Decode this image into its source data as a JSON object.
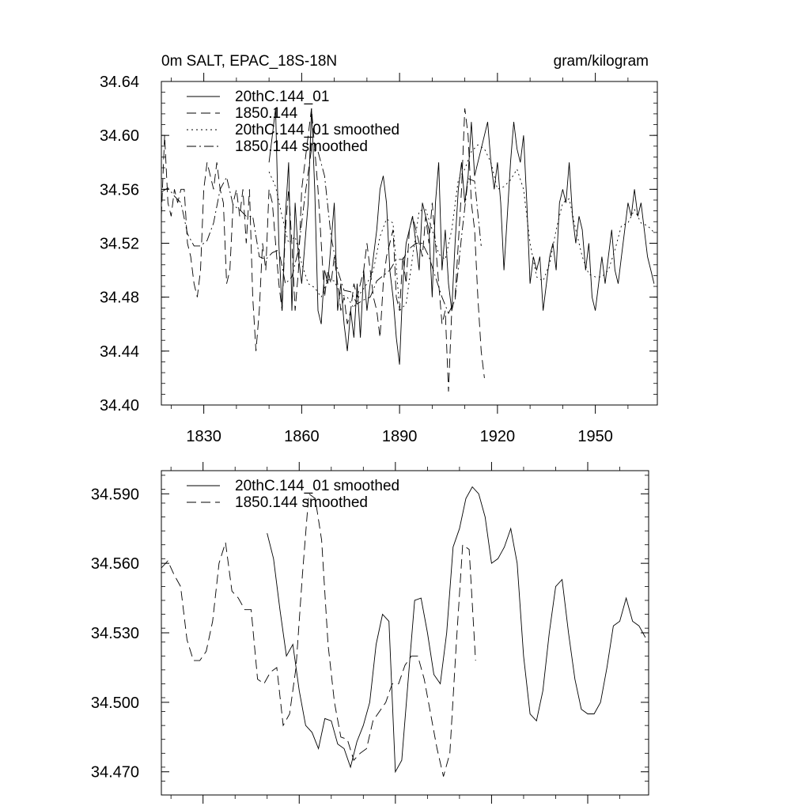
{
  "chart_data": [
    {
      "type": "line",
      "title_left": "0m SALT, EPAC_18S-18N",
      "title_right": "gram/kilogram",
      "xlim": [
        1817,
        1969
      ],
      "ylim": [
        34.4,
        34.64
      ],
      "xticks": [
        1830,
        1860,
        1890,
        1920,
        1950
      ],
      "yticks": [
        34.4,
        34.44,
        34.48,
        34.52,
        34.56,
        34.6,
        34.64
      ],
      "ytick_labels": [
        "34.40",
        "34.44",
        "34.48",
        "34.52",
        "34.56",
        "34.60",
        "34.64"
      ],
      "series": [
        {
          "name": "20thC.144_01",
          "dash": "solid",
          "x": [
            1850,
            1851,
            1852,
            1853,
            1854,
            1855,
            1856,
            1857,
            1858,
            1859,
            1860,
            1861,
            1862,
            1863,
            1864,
            1865,
            1866,
            1867,
            1868,
            1869,
            1870,
            1871,
            1872,
            1873,
            1874,
            1875,
            1876,
            1877,
            1878,
            1879,
            1880,
            1881,
            1882,
            1883,
            1884,
            1885,
            1886,
            1887,
            1888,
            1889,
            1890,
            1891,
            1892,
            1893,
            1894,
            1895,
            1896,
            1897,
            1898,
            1899,
            1900,
            1901,
            1902,
            1903,
            1904,
            1905,
            1906,
            1907,
            1908,
            1909,
            1910,
            1911,
            1912,
            1913,
            1914,
            1915,
            1916,
            1917,
            1918,
            1919,
            1920,
            1921,
            1922,
            1923,
            1924,
            1925,
            1926,
            1927,
            1928,
            1929,
            1930,
            1931,
            1932,
            1933,
            1934,
            1935,
            1936,
            1937,
            1938,
            1939,
            1940,
            1941,
            1942,
            1943,
            1944,
            1945,
            1946,
            1947,
            1948,
            1949,
            1950,
            1951,
            1952,
            1953,
            1954,
            1955,
            1956,
            1957,
            1958,
            1959,
            1960,
            1961,
            1962,
            1963,
            1964,
            1965,
            1966,
            1967,
            1968
          ],
          "y": [
            34.58,
            34.6,
            34.62,
            34.52,
            34.47,
            34.54,
            34.58,
            34.47,
            34.55,
            34.51,
            34.49,
            34.52,
            34.55,
            34.62,
            34.56,
            34.47,
            34.46,
            34.5,
            34.49,
            34.52,
            34.55,
            34.47,
            34.49,
            34.46,
            34.44,
            34.47,
            34.45,
            34.49,
            34.45,
            34.5,
            34.47,
            34.49,
            34.51,
            34.53,
            34.56,
            34.57,
            34.55,
            34.5,
            34.48,
            34.45,
            34.43,
            34.49,
            34.52,
            34.53,
            34.54,
            34.52,
            34.5,
            34.55,
            34.54,
            34.53,
            34.48,
            34.55,
            34.58,
            34.5,
            34.53,
            34.49,
            34.47,
            34.52,
            34.56,
            34.58,
            34.55,
            34.57,
            34.61,
            34.57,
            34.58,
            34.59,
            34.6,
            34.61,
            34.58,
            34.56,
            34.58,
            34.55,
            34.5,
            34.54,
            34.58,
            34.61,
            34.59,
            34.58,
            34.6,
            34.55,
            34.49,
            34.51,
            34.5,
            34.51,
            34.47,
            34.49,
            34.51,
            34.52,
            34.5,
            34.55,
            34.56,
            34.55,
            34.58,
            34.54,
            34.52,
            34.54,
            34.53,
            34.5,
            34.52,
            34.48,
            34.47,
            34.49,
            34.51,
            34.49,
            34.51,
            34.53,
            34.5,
            34.49,
            34.51,
            34.53,
            34.55,
            34.54,
            34.56,
            34.54,
            34.55,
            34.53,
            34.51,
            34.5,
            34.49
          ]
        },
        {
          "name": "1850.144",
          "dash": "long-dash",
          "x": [
            1817,
            1818,
            1819,
            1820,
            1821,
            1822,
            1823,
            1824,
            1825,
            1826,
            1827,
            1828,
            1829,
            1830,
            1831,
            1832,
            1833,
            1834,
            1835,
            1836,
            1837,
            1838,
            1839,
            1840,
            1841,
            1842,
            1843,
            1844,
            1845,
            1846,
            1847,
            1848,
            1849,
            1850,
            1851,
            1852,
            1853,
            1854,
            1855,
            1856,
            1857,
            1858,
            1859,
            1860,
            1861,
            1862,
            1863,
            1864,
            1865,
            1866,
            1867,
            1868,
            1869,
            1870,
            1871,
            1872,
            1873,
            1874,
            1875,
            1876,
            1877,
            1878,
            1879,
            1880,
            1881,
            1882,
            1883,
            1884,
            1885,
            1886,
            1887,
            1888,
            1889,
            1890,
            1891,
            1892,
            1893,
            1894,
            1895,
            1896,
            1897,
            1898,
            1899,
            1900,
            1901,
            1902,
            1903,
            1904,
            1905,
            1906,
            1907,
            1908,
            1909,
            1910,
            1911,
            1912,
            1913,
            1914,
            1915,
            1916
          ],
          "y": [
            34.54,
            34.6,
            34.55,
            34.54,
            34.56,
            34.55,
            34.56,
            34.56,
            34.52,
            34.51,
            34.49,
            34.48,
            34.5,
            34.56,
            34.58,
            34.57,
            34.56,
            34.58,
            34.56,
            34.55,
            34.49,
            34.5,
            34.55,
            34.56,
            34.54,
            34.56,
            34.52,
            34.56,
            34.48,
            34.44,
            34.47,
            34.52,
            34.5,
            34.56,
            34.55,
            34.52,
            34.49,
            34.47,
            34.53,
            34.56,
            34.52,
            34.47,
            34.5,
            34.56,
            34.58,
            34.6,
            34.62,
            34.59,
            34.56,
            34.52,
            34.48,
            34.5,
            34.49,
            34.51,
            34.49,
            34.47,
            34.48,
            34.46,
            34.47,
            34.49,
            34.48,
            34.49,
            34.5,
            34.52,
            34.5,
            34.48,
            34.47,
            34.45,
            34.49,
            34.51,
            34.52,
            34.53,
            34.48,
            34.47,
            34.51,
            34.49,
            34.53,
            34.54,
            34.53,
            34.52,
            34.51,
            34.54,
            34.52,
            34.55,
            34.52,
            34.49,
            34.46,
            34.47,
            34.41,
            34.47,
            34.48,
            34.52,
            34.56,
            34.62,
            34.6,
            34.55,
            34.53,
            34.48,
            34.44,
            34.42
          ]
        },
        {
          "name": "20thC.144_01 smoothed",
          "dash": "dotted",
          "x": [
            1850,
            1852,
            1854,
            1856,
            1858,
            1860,
            1862,
            1864,
            1866,
            1868,
            1870,
            1872,
            1874,
            1876,
            1878,
            1880,
            1882,
            1884,
            1886,
            1888,
            1890,
            1892,
            1894,
            1896,
            1898,
            1900,
            1902,
            1904,
            1906,
            1908,
            1910,
            1912,
            1914,
            1916,
            1918,
            1920,
            1922,
            1924,
            1926,
            1928,
            1930,
            1932,
            1934,
            1936,
            1938,
            1940,
            1942,
            1944,
            1946,
            1948,
            1950,
            1952,
            1954,
            1956,
            1958,
            1960,
            1962,
            1964,
            1966,
            1968
          ],
          "y": [
            34.573,
            34.562,
            34.54,
            34.52,
            34.525,
            34.505,
            34.49,
            34.487,
            34.48,
            34.493,
            34.492,
            34.482,
            34.48,
            34.472,
            34.483,
            34.49,
            34.5,
            34.525,
            34.538,
            34.535,
            34.47,
            34.475,
            34.51,
            34.544,
            34.545,
            34.53,
            34.512,
            34.508,
            34.53,
            34.567,
            34.575,
            34.588,
            34.593,
            34.59,
            34.58,
            34.56,
            34.562,
            34.567,
            34.575,
            34.56,
            34.52,
            34.495,
            34.492,
            34.505,
            34.53,
            34.55,
            34.553,
            34.53,
            34.51,
            34.497,
            34.495,
            34.495,
            34.5,
            34.515,
            34.533,
            34.535,
            34.545,
            34.535,
            34.533,
            34.528
          ]
        },
        {
          "name": "1850.144 smoothed",
          "dash": "dash-dot",
          "x": [
            1817,
            1819,
            1821,
            1823,
            1825,
            1827,
            1829,
            1831,
            1833,
            1835,
            1837,
            1839,
            1841,
            1843,
            1845,
            1847,
            1849,
            1851,
            1853,
            1855,
            1857,
            1859,
            1861,
            1863,
            1865,
            1867,
            1869,
            1871,
            1873,
            1875,
            1877,
            1879,
            1881,
            1883,
            1885,
            1887,
            1889,
            1891,
            1893,
            1895,
            1897,
            1899,
            1901,
            1903,
            1905,
            1907,
            1909,
            1911,
            1913,
            1915
          ],
          "y": [
            34.558,
            34.561,
            34.555,
            34.55,
            34.527,
            34.518,
            34.518,
            34.522,
            34.535,
            34.56,
            34.569,
            34.548,
            34.545,
            34.54,
            34.54,
            34.51,
            34.508,
            34.513,
            34.515,
            34.49,
            34.495,
            34.515,
            34.555,
            34.59,
            34.588,
            34.57,
            34.525,
            34.5,
            34.485,
            34.484,
            34.475,
            34.478,
            34.48,
            34.492,
            34.496,
            34.5,
            34.508,
            34.508,
            34.516,
            34.52,
            34.52,
            34.51,
            34.495,
            34.48,
            34.468,
            34.478,
            34.525,
            34.568,
            34.566,
            34.518
          ]
        }
      ]
    },
    {
      "type": "line",
      "xlim": [
        1817,
        1969
      ],
      "ylim": [
        34.46,
        34.6
      ],
      "xticks": [
        1830,
        1860,
        1890,
        1920,
        1950
      ],
      "yticks": [
        34.47,
        34.5,
        34.53,
        34.56,
        34.59
      ],
      "ytick_labels": [
        "34.470",
        "34.500",
        "34.530",
        "34.560",
        "34.590"
      ],
      "series": [
        {
          "name": "20thC.144_01 smoothed",
          "dash": "solid",
          "x": [
            1850,
            1852,
            1854,
            1856,
            1858,
            1860,
            1862,
            1864,
            1866,
            1868,
            1870,
            1872,
            1874,
            1876,
            1878,
            1880,
            1882,
            1884,
            1886,
            1888,
            1890,
            1892,
            1894,
            1896,
            1898,
            1900,
            1902,
            1904,
            1906,
            1908,
            1910,
            1912,
            1914,
            1916,
            1918,
            1920,
            1922,
            1924,
            1926,
            1928,
            1930,
            1932,
            1934,
            1936,
            1938,
            1940,
            1942,
            1944,
            1946,
            1948,
            1950,
            1952,
            1954,
            1956,
            1958,
            1960,
            1962,
            1964,
            1966,
            1968
          ],
          "y": [
            34.573,
            34.562,
            34.54,
            34.52,
            34.525,
            34.505,
            34.49,
            34.487,
            34.48,
            34.493,
            34.492,
            34.482,
            34.48,
            34.472,
            34.483,
            34.49,
            34.5,
            34.525,
            34.538,
            34.535,
            34.47,
            34.475,
            34.51,
            34.544,
            34.545,
            34.53,
            34.512,
            34.508,
            34.53,
            34.567,
            34.575,
            34.588,
            34.593,
            34.59,
            34.58,
            34.56,
            34.562,
            34.567,
            34.575,
            34.56,
            34.52,
            34.495,
            34.492,
            34.505,
            34.53,
            34.55,
            34.553,
            34.53,
            34.51,
            34.497,
            34.495,
            34.495,
            34.5,
            34.515,
            34.533,
            34.535,
            34.545,
            34.535,
            34.533,
            34.528
          ]
        },
        {
          "name": "1850.144 smoothed",
          "dash": "long-dash",
          "x": [
            1817,
            1819,
            1821,
            1823,
            1825,
            1827,
            1829,
            1831,
            1833,
            1835,
            1837,
            1839,
            1841,
            1843,
            1845,
            1847,
            1849,
            1851,
            1853,
            1855,
            1857,
            1859,
            1861,
            1863,
            1865,
            1867,
            1869,
            1871,
            1873,
            1875,
            1877,
            1879,
            1881,
            1883,
            1885,
            1887,
            1889,
            1891,
            1893,
            1895,
            1897,
            1899,
            1901,
            1903,
            1905,
            1907,
            1909,
            1911,
            1913,
            1915
          ],
          "y": [
            34.558,
            34.561,
            34.555,
            34.55,
            34.527,
            34.518,
            34.518,
            34.522,
            34.535,
            34.56,
            34.569,
            34.548,
            34.545,
            34.54,
            34.54,
            34.51,
            34.508,
            34.513,
            34.515,
            34.49,
            34.495,
            34.515,
            34.555,
            34.59,
            34.588,
            34.57,
            34.525,
            34.5,
            34.485,
            34.484,
            34.475,
            34.478,
            34.48,
            34.492,
            34.496,
            34.5,
            34.508,
            34.508,
            34.516,
            34.52,
            34.52,
            34.51,
            34.495,
            34.48,
            34.468,
            34.478,
            34.525,
            34.568,
            34.566,
            34.518
          ]
        }
      ]
    }
  ]
}
